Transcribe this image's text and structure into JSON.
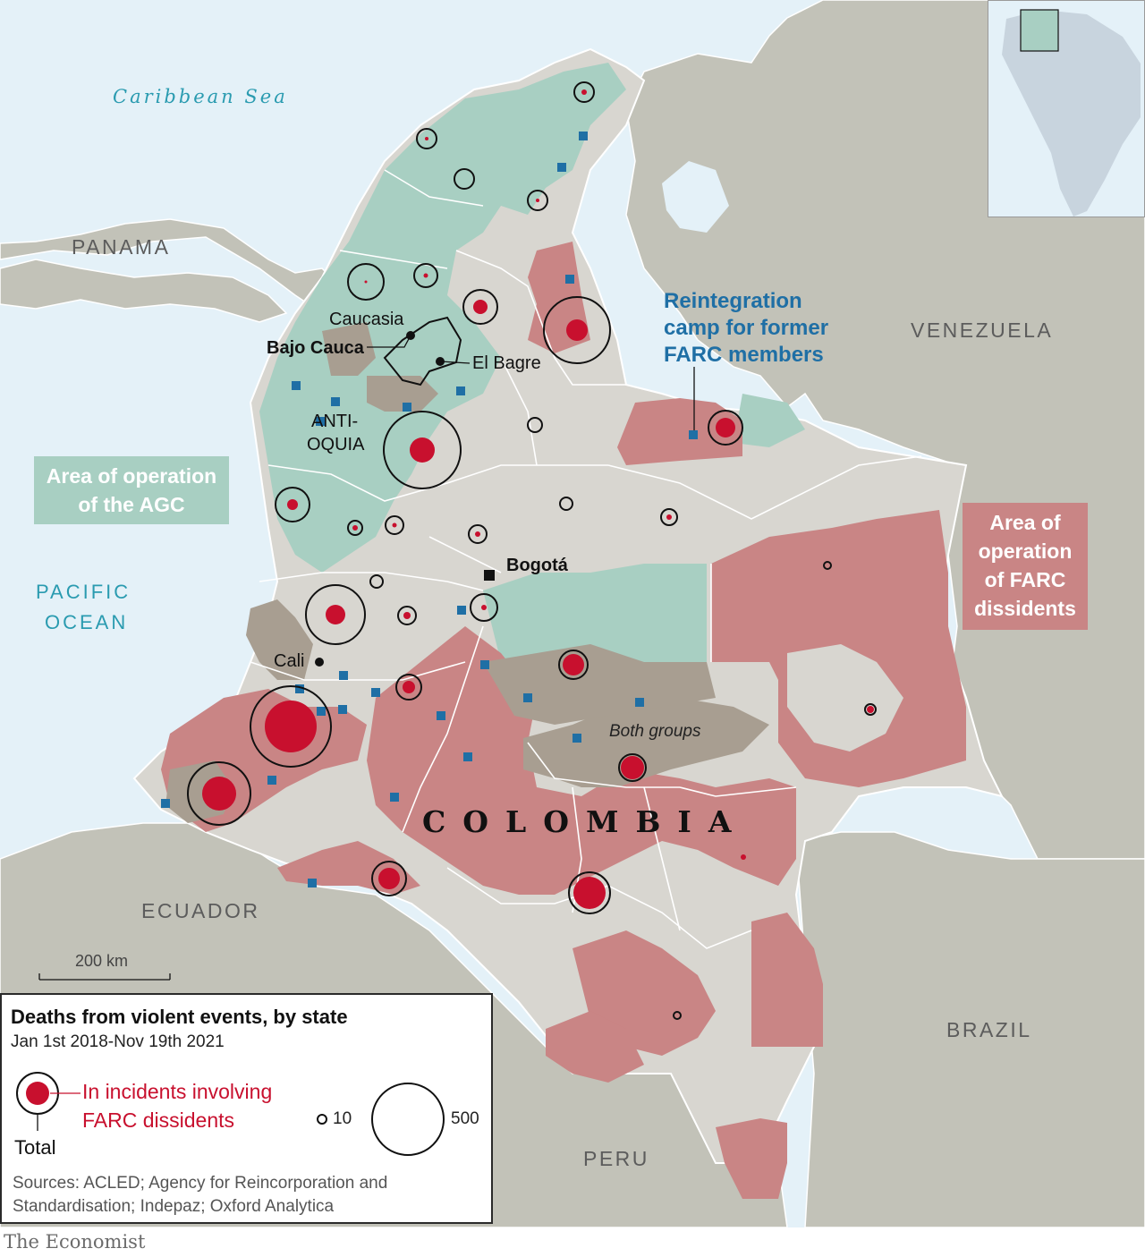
{
  "brand_color": "#e3120b",
  "colors": {
    "sea": "#e4f1f8",
    "neighbour": "#c2c2b8",
    "colombia": "#d8d6d0",
    "agc": "#a8cfc2",
    "farc": "#c98585",
    "both": "#a89e91",
    "death_total_ring": "#111111",
    "death_farc_fill": "#c8102e",
    "camp": "#1f6fa5"
  },
  "labels": {
    "caribbean": "Caribbean Sea",
    "pacific_1": "PACIFIC",
    "pacific_2": "OCEAN",
    "panama": "PANAMA",
    "venezuela": "VENEZUELA",
    "ecuador": "ECUADOR",
    "brazil": "BRAZIL",
    "peru": "PERU",
    "colombia": "COLOMBIA",
    "caucasia": "Caucasia",
    "bajo_cauca": "Bajo Cauca",
    "el_bagre": "El Bagre",
    "antioquia_1": "ANTI-",
    "antioquia_2": "OQUIA",
    "bogota": "Bogotá",
    "cali": "Cali",
    "both_groups": "Both groups"
  },
  "annotations": {
    "agc_line1": "Area of operation",
    "agc_line2": "of the AGC",
    "farc_line1": "Area of",
    "farc_line2": "operation",
    "farc_line3": "of FARC",
    "farc_line4": "dissidents",
    "reint_line1": "Reintegration",
    "reint_line2": "camp for former",
    "reint_line3": "FARC members"
  },
  "scale": "200 km",
  "legend": {
    "title": "Deaths from violent events, by state",
    "subtitle": "Jan 1st 2018-Nov 19th 2021",
    "farc_line1": "In incidents involving",
    "farc_line2": "FARC dissidents",
    "total": "Total",
    "size_small": "10",
    "size_large": "500"
  },
  "sources_line1": "Sources: ACLED; Agency for Reincorporation and",
  "sources_line2": "Standardisation; Indepaz; Oxford Analytica",
  "brand": "The Economist"
}
